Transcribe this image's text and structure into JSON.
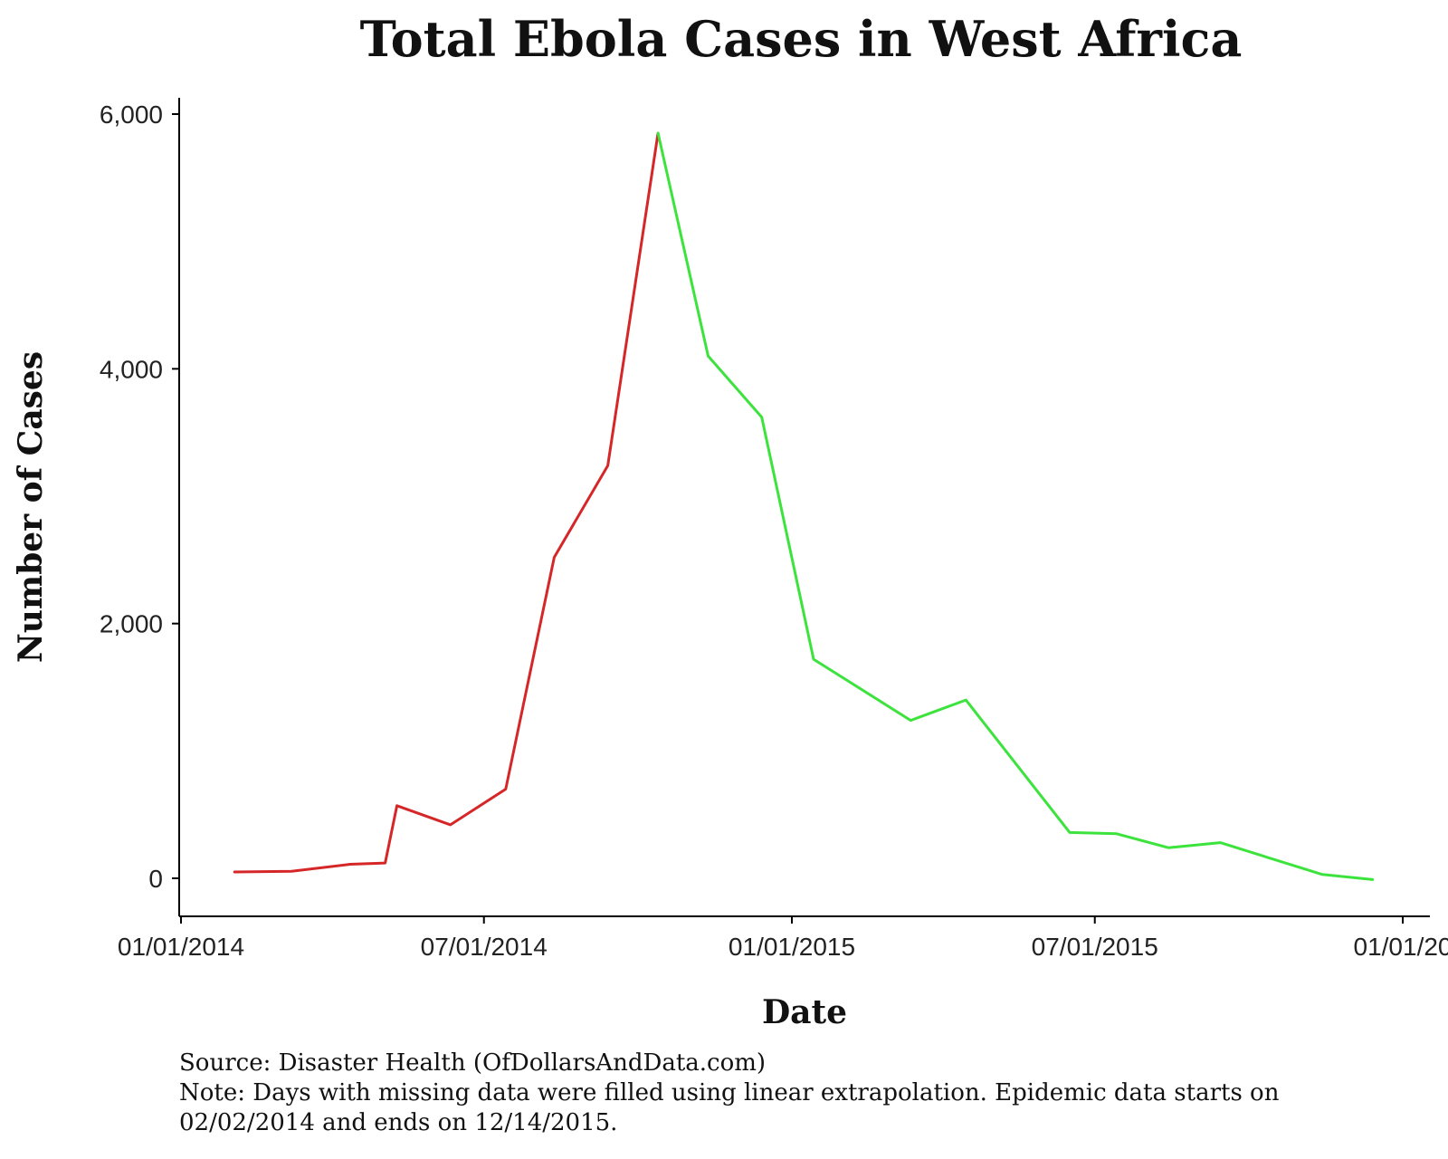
{
  "chart_data": {
    "type": "line",
    "title": "Total Ebola Cases in West Africa",
    "xlabel": "Date",
    "ylabel": "Number of Cases",
    "x_axis_type": "date",
    "x_ticks": [
      "2014-01-01",
      "2014-07-01",
      "2015-01-01",
      "2015-07-01",
      "2016-01-01"
    ],
    "x_tick_labels": [
      "01/01/2014",
      "07/01/2014",
      "01/01/2015",
      "07/01/2015",
      "01/01/20"
    ],
    "xlim": [
      "2014-01-01",
      "2016-01-01"
    ],
    "y_ticks": [
      0,
      2000,
      4000,
      6000
    ],
    "y_tick_labels": [
      "0",
      "2,000",
      "4,000",
      "6,000"
    ],
    "ylim": [
      -300,
      6100
    ],
    "grid": false,
    "legend": "none",
    "series": [
      {
        "color": "#d62728",
        "points": [
          [
            "2014-02-02",
            50
          ],
          [
            "2014-03-08",
            55
          ],
          [
            "2014-04-12",
            110
          ],
          [
            "2014-05-03",
            120
          ],
          [
            "2014-05-10",
            570
          ],
          [
            "2014-06-11",
            420
          ],
          [
            "2014-07-14",
            700
          ],
          [
            "2014-08-12",
            2520
          ],
          [
            "2014-09-13",
            3240
          ],
          [
            "2014-10-13",
            5850
          ]
        ]
      },
      {
        "color": "#3de33d",
        "points": [
          [
            "2014-10-13",
            5850
          ],
          [
            "2014-11-12",
            4100
          ],
          [
            "2014-12-14",
            3620
          ],
          [
            "2015-01-14",
            1720
          ],
          [
            "2015-03-13",
            1240
          ],
          [
            "2015-04-15",
            1400
          ],
          [
            "2015-06-16",
            360
          ],
          [
            "2015-07-14",
            350
          ],
          [
            "2015-08-14",
            240
          ],
          [
            "2015-09-14",
            280
          ],
          [
            "2015-11-14",
            30
          ],
          [
            "2015-12-14",
            -10
          ]
        ]
      }
    ]
  },
  "caption": {
    "source": "Source: Disaster Health (OfDollarsAndData.com)",
    "note": "Note: Days with missing data were filled using linear extrapolation. Epidemic data starts on 02/02/2014 and ends on 12/14/2015."
  }
}
